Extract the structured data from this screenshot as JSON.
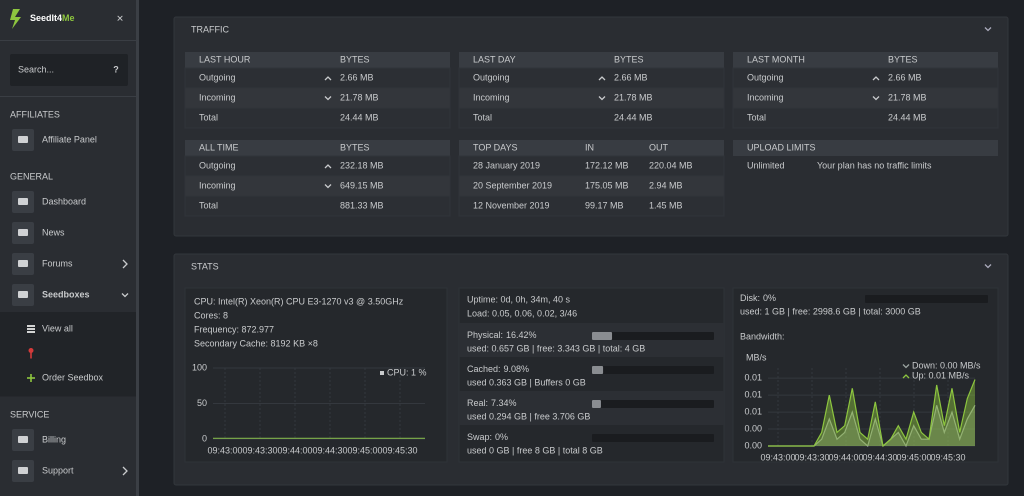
{
  "sidebar": {
    "logo": {
      "main": "SeedIt4",
      "accent": "Me"
    },
    "close": "✕",
    "search": "Search...",
    "help": "?",
    "sections": [
      {
        "title": "AFFILIATES",
        "items": [
          {
            "label": "Affiliate Panel"
          }
        ]
      },
      {
        "title": "GENERAL",
        "items": [
          {
            "label": "Dashboard"
          },
          {
            "label": "News"
          },
          {
            "label": "Forums",
            "arrow": "right"
          },
          {
            "label": "Seedboxes",
            "arrow": "down",
            "active": true,
            "children": [
              {
                "label": "View all",
                "icon": "list"
              },
              {
                "icon": "key"
              },
              {
                "label": "Order Seedbox",
                "icon": "plus"
              }
            ]
          }
        ]
      },
      {
        "title": "SERVICE",
        "items": [
          {
            "label": "Billing"
          },
          {
            "label": "Support",
            "arrow": "right"
          }
        ]
      }
    ]
  },
  "traffic": {
    "title": "TRAFFIC",
    "tables": [
      {
        "headers": [
          "LAST HOUR",
          "BYTES"
        ],
        "rows": [
          {
            "cells": [
              "Outgoing",
              "2.66 MB"
            ],
            "dir": "up"
          },
          {
            "cells": [
              "Incoming",
              "21.78 MB"
            ],
            "dir": "down"
          },
          {
            "cells": [
              "Total",
              "24.44 MB"
            ]
          }
        ]
      },
      {
        "headers": [
          "LAST DAY",
          "BYTES"
        ],
        "rows": [
          {
            "cells": [
              "Outgoing",
              "2.66 MB"
            ],
            "dir": "up"
          },
          {
            "cells": [
              "Incoming",
              "21.78 MB"
            ],
            "dir": "down"
          },
          {
            "cells": [
              "Total",
              "24.44 MB"
            ]
          }
        ]
      },
      {
        "headers": [
          "LAST MONTH",
          "BYTES"
        ],
        "rows": [
          {
            "cells": [
              "Outgoing",
              "2.66 MB"
            ],
            "dir": "up"
          },
          {
            "cells": [
              "Incoming",
              "21.78 MB"
            ],
            "dir": "down"
          },
          {
            "cells": [
              "Total",
              "24.44 MB"
            ]
          }
        ]
      },
      {
        "headers": [
          "ALL TIME",
          "BYTES"
        ],
        "rows": [
          {
            "cells": [
              "Outgoing",
              "232.18 MB"
            ],
            "dir": "up"
          },
          {
            "cells": [
              "Incoming",
              "649.15 MB"
            ],
            "dir": "down"
          },
          {
            "cells": [
              "Total",
              "881.33 MB"
            ]
          }
        ]
      },
      {
        "headers": [
          "TOP DAYS",
          "IN",
          "OUT"
        ],
        "rows": [
          {
            "cells": [
              "28 January 2019",
              "172.12 MB",
              "220.04 MB"
            ]
          },
          {
            "cells": [
              "20 September 2019",
              "175.05 MB",
              "2.94 MB"
            ]
          },
          {
            "cells": [
              "12 November 2019",
              "99.17 MB",
              "1.45 MB"
            ]
          }
        ]
      },
      {
        "headers": [
          "UPLOAD LIMITS"
        ],
        "rows": [
          {
            "cells": [
              "Unlimited",
              "Your plan has no traffic limits"
            ]
          }
        ]
      }
    ]
  },
  "stats": {
    "title": "STATS",
    "cpu": {
      "lines": [
        "CPU: Intel(R) Xeon(R) CPU E3-1270 v3 @ 3.50GHz",
        "Cores: 8",
        "Frequency: 872.977",
        "Secondary Cache: 8192 KB ×8"
      ],
      "chart": {
        "type": "line",
        "legend": "CPU: 1 %",
        "ylim": [
          0,
          100
        ],
        "yticks": [
          0,
          50,
          100
        ],
        "xticks": [
          "09:43:00",
          "09:43:30",
          "09:44:00",
          "09:44:30",
          "09:45:00",
          "09:45:30"
        ],
        "series": [
          {
            "color": "#7fb24a",
            "values": [
              1,
              1,
              1,
              1,
              1,
              1,
              1,
              1,
              1,
              1,
              1,
              1,
              1,
              1,
              1,
              1,
              1,
              1,
              1,
              1
            ]
          }
        ]
      }
    },
    "system": {
      "lines": [
        "Uptime: 0d, 0h, 34m, 40 s",
        "Load: 0.05, 0.06, 0.02, 3/46"
      ],
      "memory": [
        {
          "label": "Physical:",
          "value": 16.42,
          "value_label": "16.42%",
          "detail": "used: 0.657 GB | free: 3.343 GB | total: 4 GB"
        },
        {
          "label": "Cached:",
          "value": 9.08,
          "value_label": "9.08%",
          "detail": "used 0.363 GB | Buffers 0 GB"
        },
        {
          "label": "Real:",
          "value": 7.34,
          "value_label": "7.34%",
          "detail": "used 0.294 GB | free 3.706 GB"
        },
        {
          "label": "Swap:",
          "value": 0,
          "value_label": "0%",
          "detail": "used 0 GB | free 8 GB | total 8 GB"
        }
      ]
    },
    "disk": {
      "label": "Disk:",
      "value": 0,
      "value_label": "0%",
      "detail": "used: 1 GB | free: 2998.6 GB | total: 3000 GB",
      "bandwidth_title": "Bandwidth:",
      "chart": {
        "type": "area",
        "y_label": "MB/s",
        "ylim": [
          0,
          0.0115
        ],
        "yticks": [
          {
            "value": 0,
            "label": "0.00"
          },
          {
            "value": 0.0025,
            "label": "0.00"
          },
          {
            "value": 0.005,
            "label": "0.01"
          },
          {
            "value": 0.0075,
            "label": "0.01"
          },
          {
            "value": 0.01,
            "label": "0.01"
          }
        ],
        "xticks": [
          "09:43:00",
          "09:43:30",
          "09:44:00",
          "09:44:30",
          "09:45:00",
          "09:45:30"
        ],
        "series": [
          {
            "name": "Down: 0.00 MB/s",
            "color": "#9aa3a0",
            "values": [
              0,
              0,
              0,
              0,
              0,
              0,
              0,
              0.001,
              0.004,
              0.001,
              0.002,
              0.005,
              0.001,
              0,
              0.004,
              0,
              0.001,
              0.002,
              0,
              0.003,
              0.001,
              0.001,
              0.006,
              0.002,
              0.005,
              0.001,
              0.004,
              0.006
            ]
          },
          {
            "name": "Up: 0.01 MB/s",
            "color": "#8dc63f",
            "values": [
              0,
              0,
              0,
              0,
              0,
              0,
              0,
              0.002,
              0.0075,
              0.002,
              0.003,
              0.0085,
              0.002,
              0.001,
              0.0065,
              0,
              0.001,
              0.003,
              0.001,
              0.005,
              0.002,
              0.001,
              0.009,
              0.003,
              0.0085,
              0.002,
              0.007,
              0.0098
            ]
          }
        ]
      }
    }
  }
}
